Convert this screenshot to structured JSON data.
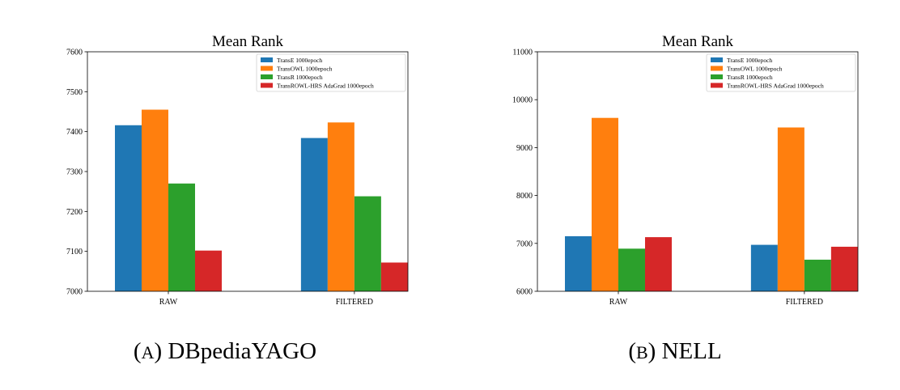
{
  "colors": [
    "#1f77b4",
    "#ff7f0e",
    "#2ca02c",
    "#d62728"
  ],
  "chart_data": [
    {
      "type": "bar",
      "title": "Mean Rank",
      "caption_letter": "A",
      "caption_name": "DBpediaYAGO",
      "categories": [
        "RAW",
        "FILTERED"
      ],
      "ylim": [
        7000,
        7600
      ],
      "yticks": [
        7000,
        7100,
        7200,
        7300,
        7400,
        7500,
        7600
      ],
      "legend_position": "top-right",
      "grid": false,
      "series": [
        {
          "name": "TransE 1000epoch",
          "values": [
            7416,
            7384
          ]
        },
        {
          "name": "TransOWL 1000epoch",
          "values": [
            7455,
            7423
          ]
        },
        {
          "name": "TransR 1000epoch",
          "values": [
            7270,
            7238
          ]
        },
        {
          "name": "TransROWL-HRS AdaGrad 1000epoch",
          "values": [
            7102,
            7072
          ]
        }
      ]
    },
    {
      "type": "bar",
      "title": "Mean Rank",
      "caption_letter": "B",
      "caption_name": "NELL",
      "categories": [
        "RAW",
        "FILTERED"
      ],
      "ylim": [
        6000,
        11000
      ],
      "yticks": [
        6000,
        7000,
        8000,
        9000,
        10000,
        11000
      ],
      "legend_position": "top-right",
      "grid": false,
      "series": [
        {
          "name": "TransE 1000epoch",
          "values": [
            7150,
            6970
          ]
        },
        {
          "name": "TransOWL 1000epoch",
          "values": [
            9620,
            9420
          ]
        },
        {
          "name": "TransR 1000epoch",
          "values": [
            6890,
            6660
          ]
        },
        {
          "name": "TransROWL-HRS AdaGrad 1000epoch",
          "values": [
            7130,
            6930
          ]
        }
      ]
    }
  ]
}
